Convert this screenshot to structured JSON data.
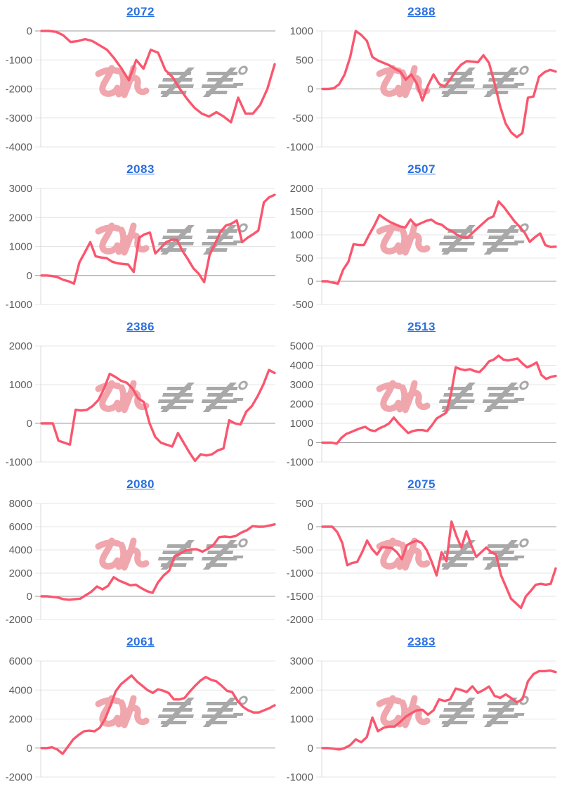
{
  "page": {
    "background": "#ffffff",
    "layout": "2x5 grid of mini stock line charts",
    "watermark": {
      "logo_text": "みんかぶ",
      "pink_part": "みん",
      "gray_part": "かぶ",
      "pink_color": "#f0a6ad",
      "gray_color": "#a8a8a8"
    },
    "styles": {
      "line_color": "#fa566e",
      "grid_color": "#e4e4e4",
      "zero_line_color": "#9b9b9b",
      "axis_border_color": "#d8d8d8",
      "label_color": "#5f5f5f",
      "title_color": "#2a6fdf"
    }
  },
  "chart_data": [
    {
      "type": "line",
      "title": "2072",
      "xlabel": "",
      "ylabel": "",
      "ylim": [
        -4000,
        0
      ],
      "yticks": [
        0,
        -1000,
        -2000,
        -3000,
        -4000
      ],
      "values": [
        0,
        0,
        -30,
        -150,
        -380,
        -350,
        -280,
        -350,
        -500,
        -650,
        -950,
        -1300,
        -1700,
        -1000,
        -1300,
        -650,
        -750,
        -1350,
        -1600,
        -2000,
        -2350,
        -2650,
        -2850,
        -2950,
        -2800,
        -2950,
        -3150,
        -2300,
        -2850,
        -2850,
        -2550,
        -2000,
        -1150
      ]
    },
    {
      "type": "line",
      "title": "2388",
      "xlabel": "",
      "ylabel": "",
      "ylim": [
        -1000,
        1000
      ],
      "yticks": [
        1000,
        500,
        0,
        -500,
        -1000
      ],
      "values": [
        0,
        0,
        10,
        80,
        250,
        550,
        1000,
        930,
        830,
        550,
        490,
        450,
        410,
        350,
        300,
        160,
        250,
        90,
        -200,
        60,
        250,
        90,
        40,
        160,
        310,
        420,
        480,
        470,
        460,
        580,
        450,
        100,
        -300,
        -600,
        -750,
        -830,
        -760,
        -150,
        -130,
        210,
        290,
        330,
        300
      ]
    },
    {
      "type": "line",
      "title": "2083",
      "xlabel": "",
      "ylabel": "",
      "ylim": [
        -1000,
        3000
      ],
      "yticks": [
        3000,
        2000,
        1000,
        0,
        -1000
      ],
      "values": [
        0,
        0,
        -20,
        -60,
        -150,
        -200,
        -280,
        450,
        800,
        1150,
        660,
        620,
        600,
        480,
        420,
        400,
        380,
        120,
        1300,
        1420,
        1480,
        760,
        950,
        1150,
        1230,
        1230,
        850,
        560,
        250,
        60,
        -230,
        700,
        1100,
        1500,
        1720,
        1780,
        1900,
        1150,
        1300,
        1420,
        1550,
        2520,
        2700,
        2780
      ]
    },
    {
      "type": "line",
      "title": "2507",
      "xlabel": "",
      "ylabel": "",
      "ylim": [
        -500,
        2000
      ],
      "yticks": [
        2000,
        1500,
        1000,
        500,
        0,
        -500
      ],
      "values": [
        0,
        0,
        -30,
        -50,
        250,
        420,
        800,
        780,
        780,
        1000,
        1200,
        1430,
        1350,
        1280,
        1230,
        1180,
        1160,
        1330,
        1200,
        1250,
        1300,
        1330,
        1250,
        1220,
        1130,
        1080,
        1000,
        950,
        940,
        1050,
        1150,
        1250,
        1350,
        1400,
        1720,
        1600,
        1450,
        1300,
        1180,
        1050,
        850,
        950,
        1030,
        780,
        740,
        745
      ]
    },
    {
      "type": "line",
      "title": "2386",
      "xlabel": "",
      "ylabel": "",
      "ylim": [
        -1000,
        2000
      ],
      "yticks": [
        2000,
        1000,
        0,
        -1000
      ],
      "values": [
        0,
        0,
        0,
        -450,
        -500,
        -550,
        350,
        330,
        350,
        450,
        600,
        900,
        1280,
        1200,
        1100,
        1050,
        900,
        650,
        550,
        0,
        -350,
        -500,
        -550,
        -600,
        -250,
        -500,
        -750,
        -970,
        -800,
        -830,
        -800,
        -700,
        -650,
        80,
        0,
        -30,
        300,
        450,
        700,
        1000,
        1380,
        1300
      ]
    },
    {
      "type": "line",
      "title": "2513",
      "xlabel": "",
      "ylabel": "",
      "ylim": [
        -1000,
        5000
      ],
      "yticks": [
        5000,
        4000,
        3000,
        2000,
        1000,
        0,
        -1000
      ],
      "values": [
        0,
        0,
        0,
        -50,
        250,
        450,
        550,
        650,
        750,
        820,
        650,
        600,
        750,
        850,
        1000,
        1300,
        1000,
        750,
        500,
        600,
        650,
        650,
        600,
        900,
        1250,
        1400,
        1550,
        2500,
        3900,
        3800,
        3750,
        3800,
        3700,
        3650,
        3900,
        4200,
        4300,
        4500,
        4300,
        4250,
        4300,
        4350,
        4100,
        3900,
        4000,
        4150,
        3500,
        3300,
        3400,
        3450
      ]
    },
    {
      "type": "line",
      "title": "2080",
      "xlabel": "",
      "ylabel": "",
      "ylim": [
        -2000,
        8000
      ],
      "yticks": [
        8000,
        6000,
        4000,
        2000,
        0,
        -2000
      ],
      "values": [
        0,
        0,
        -50,
        -100,
        -250,
        -300,
        -250,
        -200,
        100,
        400,
        850,
        600,
        900,
        1650,
        1350,
        1150,
        950,
        1000,
        700,
        450,
        300,
        1200,
        1800,
        2200,
        3450,
        3700,
        3950,
        4050,
        4050,
        3850,
        4100,
        4450,
        5100,
        5150,
        5100,
        5200,
        5500,
        5700,
        6050,
        6000,
        6000,
        6100,
        6200
      ]
    },
    {
      "type": "line",
      "title": "2075",
      "xlabel": "",
      "ylabel": "",
      "ylim": [
        -2000,
        500
      ],
      "yticks": [
        500,
        0,
        -500,
        -1000,
        -1500,
        -2000
      ],
      "values": [
        0,
        0,
        0,
        -120,
        -350,
        -830,
        -780,
        -760,
        -550,
        -300,
        -480,
        -600,
        -440,
        -450,
        -460,
        -550,
        -700,
        -400,
        -340,
        -300,
        -350,
        -500,
        -750,
        -1050,
        -550,
        -750,
        110,
        -200,
        -450,
        -100,
        -400,
        -650,
        -550,
        -450,
        -550,
        -600,
        -1050,
        -1300,
        -1550,
        -1650,
        -1750,
        -1500,
        -1380,
        -1250,
        -1230,
        -1250,
        -1230,
        -900
      ]
    },
    {
      "type": "line",
      "title": "2061",
      "xlabel": "",
      "ylabel": "",
      "ylim": [
        -2000,
        6000
      ],
      "yticks": [
        6000,
        4000,
        2000,
        0,
        -2000
      ],
      "values": [
        0,
        0,
        50,
        -100,
        -400,
        100,
        600,
        900,
        1150,
        1200,
        1150,
        1400,
        2000,
        2900,
        3900,
        4400,
        4700,
        5000,
        4600,
        4300,
        4000,
        3800,
        4050,
        3950,
        3800,
        3350,
        3350,
        3450,
        3900,
        4300,
        4650,
        4900,
        4700,
        4600,
        4300,
        3950,
        3850,
        3250,
        2850,
        2600,
        2450,
        2450,
        2600,
        2750,
        2950
      ]
    },
    {
      "type": "line",
      "title": "2383",
      "xlabel": "",
      "ylabel": "",
      "ylim": [
        -1000,
        3000
      ],
      "yticks": [
        3000,
        2000,
        1000,
        0,
        -1000
      ],
      "values": [
        0,
        0,
        -20,
        -50,
        0,
        100,
        300,
        200,
        380,
        1050,
        580,
        700,
        740,
        740,
        900,
        1080,
        1200,
        1300,
        1320,
        1150,
        1300,
        1680,
        1620,
        1680,
        2050,
        2000,
        1930,
        2130,
        1900,
        2000,
        2120,
        1800,
        1730,
        1850,
        1720,
        1580,
        1680,
        2300,
        2550,
        2650,
        2650,
        2670,
        2620
      ]
    }
  ]
}
